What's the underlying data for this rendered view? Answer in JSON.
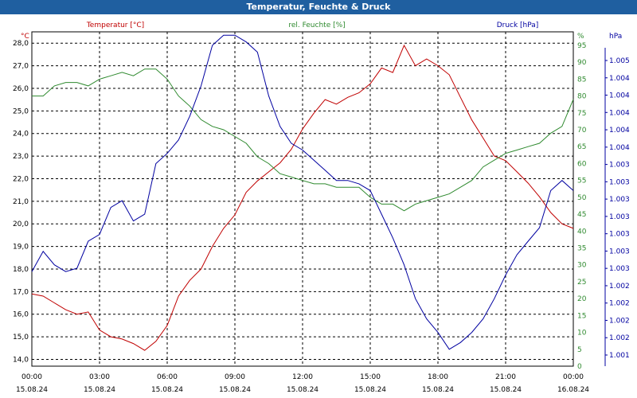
{
  "window": {
    "title": "Temperatur, Feuchte & Druck"
  },
  "chart_data": {
    "type": "line",
    "title": "Temperatur, Feuchte & Druck",
    "x_ticks": [
      {
        "time": "00:00",
        "date": "15.08.24"
      },
      {
        "time": "03:00",
        "date": "15.08.24"
      },
      {
        "time": "06:00",
        "date": "15.08.24"
      },
      {
        "time": "09:00",
        "date": "15.08.24"
      },
      {
        "time": "12:00",
        "date": "15.08.24"
      },
      {
        "time": "15:00",
        "date": "15.08.24"
      },
      {
        "time": "18:00",
        "date": "15.08.24"
      },
      {
        "time": "21:00",
        "date": "15.08.24"
      },
      {
        "time": "00:00",
        "date": "16.08.24"
      }
    ],
    "xlim_hours": [
      0,
      24
    ],
    "grid": true,
    "axes": {
      "left": {
        "unit": "°C",
        "ticks": [
          "28,0",
          "27,0",
          "26,0",
          "25,0",
          "24,0",
          "23,0",
          "22,0",
          "21,0",
          "20,0",
          "19,0",
          "18,0",
          "17,0",
          "16,0",
          "15,0",
          "14,0"
        ],
        "ylim": [
          13.7,
          28.5
        ]
      },
      "middle": {
        "unit": "%",
        "ticks": [
          "95",
          "90",
          "85",
          "80",
          "75",
          "70",
          "65",
          "60",
          "55",
          "50",
          "45",
          "40",
          "35",
          "30",
          "25",
          "20",
          "15",
          "10",
          "5",
          "0"
        ],
        "ylim": [
          0,
          99
        ]
      },
      "right": {
        "unit": "hPa",
        "ticks": [
          "1.005",
          "1.004",
          "1.004",
          "1.004",
          "1.004",
          "1.004",
          "1.003",
          "1.003",
          "1.003",
          "1.003",
          "1.003",
          "1.003",
          "1.003",
          "1.002",
          "1.002",
          "1.002",
          "1.002",
          "1.001"
        ]
      }
    },
    "series": [
      {
        "name": "Temperatur [°C]",
        "color": "#c00000",
        "axis": "left",
        "x": [
          0,
          0.5,
          1,
          1.5,
          2,
          2.5,
          3,
          3.5,
          4,
          4.5,
          5,
          5.5,
          6,
          6.5,
          7,
          7.5,
          8,
          8.5,
          9,
          9.5,
          10,
          10.5,
          11,
          11.5,
          12,
          12.5,
          13,
          13.5,
          14,
          14.5,
          15,
          15.5,
          16,
          16.5,
          17,
          17.5,
          18,
          18.5,
          19,
          19.5,
          20,
          20.5,
          21,
          21.5,
          22,
          22.5,
          23,
          23.5,
          24
        ],
        "values": [
          16.9,
          16.8,
          16.5,
          16.2,
          16.0,
          16.1,
          15.3,
          15.0,
          14.9,
          14.7,
          14.4,
          14.8,
          15.5,
          16.8,
          17.5,
          18.0,
          19.0,
          19.8,
          20.4,
          21.4,
          21.9,
          22.3,
          22.7,
          23.3,
          24.2,
          24.9,
          25.5,
          25.3,
          25.6,
          25.8,
          26.2,
          26.9,
          26.7,
          27.9,
          27.0,
          27.3,
          27.0,
          26.6,
          25.6,
          24.6,
          23.8,
          23.0,
          22.8,
          22.3,
          21.8,
          21.2,
          20.5,
          20.0,
          19.8
        ]
      },
      {
        "name": "rel. Feuchte [%]",
        "color": "#2f8a2f",
        "axis": "middle",
        "x": [
          0,
          0.5,
          1,
          1.5,
          2,
          2.5,
          3,
          3.5,
          4,
          4.5,
          5,
          5.5,
          6,
          6.5,
          7,
          7.5,
          8,
          8.5,
          9,
          9.5,
          10,
          10.5,
          11,
          11.5,
          12,
          12.5,
          13,
          13.5,
          14,
          14.5,
          15,
          15.5,
          16,
          16.5,
          17,
          17.5,
          18,
          18.5,
          19,
          19.5,
          20,
          20.5,
          21,
          21.5,
          22,
          22.5,
          23,
          23.5,
          24
        ],
        "values": [
          80,
          80,
          83,
          84,
          84,
          83,
          85,
          86,
          87,
          86,
          88,
          88,
          85,
          80,
          77,
          73,
          71,
          70,
          68,
          66,
          62,
          60,
          57,
          56,
          55,
          54,
          54,
          53,
          53,
          53,
          50,
          48,
          48,
          46,
          48,
          49,
          50,
          51,
          53,
          55,
          59,
          61,
          63,
          64,
          65,
          66,
          69,
          71,
          79
        ]
      },
      {
        "name": "Druck [hPa]",
        "color": "#0000a0",
        "axis": "middle",
        "x": [
          0,
          0.5,
          1,
          1.5,
          2,
          2.5,
          3,
          3.5,
          4,
          4.5,
          5,
          5.5,
          6,
          6.5,
          7,
          7.5,
          8,
          8.5,
          9,
          9.5,
          10,
          10.5,
          11,
          11.5,
          12,
          12.5,
          13,
          13.5,
          14,
          14.5,
          15,
          15.5,
          16,
          16.5,
          17,
          17.5,
          18,
          18.5,
          19,
          19.5,
          20,
          20.5,
          21,
          21.5,
          22,
          22.5,
          23,
          23.5,
          24
        ],
        "values": [
          28,
          34,
          30,
          28,
          29,
          37,
          39,
          47,
          49,
          43,
          45,
          60,
          63,
          67,
          74,
          83,
          95,
          98,
          98,
          96,
          93,
          80,
          71,
          66,
          64,
          61,
          58,
          55,
          55,
          54,
          52,
          45,
          38,
          30,
          20,
          14,
          10,
          5,
          7,
          10,
          14,
          20,
          27,
          33,
          37,
          41,
          52,
          55,
          52
        ]
      }
    ]
  }
}
